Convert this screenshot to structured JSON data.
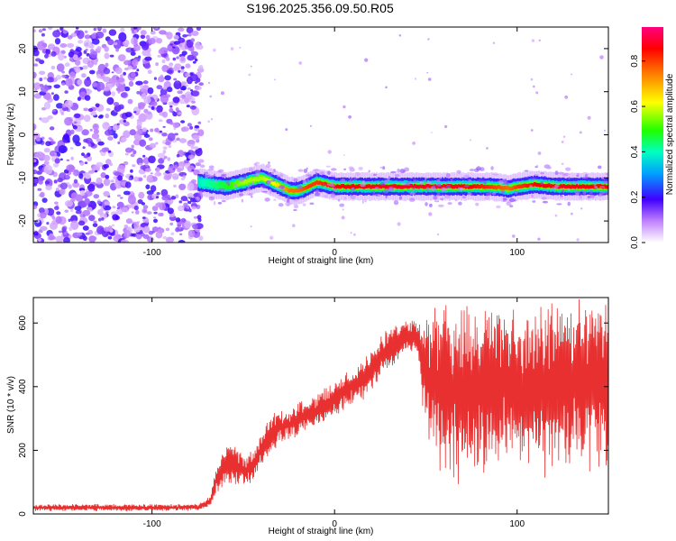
{
  "chart_data": [
    {
      "type": "heatmap",
      "title": "S196.2025.356.09.50.R05",
      "xlabel": "Height of straight line (km)",
      "ylabel": "Frequency (Hz)",
      "xlim": [
        -165,
        150
      ],
      "ylim": [
        -25,
        25
      ],
      "xticks": [
        -100,
        0,
        100
      ],
      "xtick_labels": [
        "-100",
        "0",
        "100"
      ],
      "yticks": [
        20,
        10,
        0,
        -10,
        -20
      ],
      "ytick_labels": [
        "20",
        "10",
        "0",
        "-10",
        "-20"
      ],
      "colorbar": {
        "label": "Normalized spectral amplitude",
        "range": [
          0.0,
          0.95
        ],
        "ticks": [
          0.0,
          0.2,
          0.4,
          0.6,
          0.8
        ],
        "tick_labels": [
          "0.0",
          "0.2",
          "0.4",
          "0.6",
          "0.8"
        ]
      },
      "noise_region_x": [
        -165,
        -75
      ],
      "signal_band": {
        "x": [
          -75,
          -60,
          -50,
          -40,
          -30,
          -25,
          -20,
          -15,
          -10,
          0,
          10,
          20,
          40,
          60,
          75,
          85,
          95,
          100,
          110,
          120,
          130,
          140,
          150
        ],
        "frequency": [
          -11,
          -12,
          -11,
          -10,
          -12,
          -13,
          -13,
          -12,
          -11,
          -12,
          -12,
          -12,
          -12,
          -12,
          -12,
          -12,
          -12.5,
          -12,
          -11.5,
          -12,
          -12,
          -12,
          -12
        ],
        "peak_amplitude": [
          0.4,
          0.5,
          0.6,
          0.6,
          0.7,
          0.8,
          0.8,
          0.85,
          0.85,
          0.9,
          0.9,
          0.92,
          0.93,
          0.93,
          0.9,
          0.85,
          0.8,
          0.85,
          0.9,
          0.92,
          0.92,
          0.9,
          0.9
        ]
      }
    },
    {
      "type": "line",
      "xlabel": "Height of straight line (km)",
      "ylabel": "SNR (10 * v/v)",
      "xlim": [
        -165,
        150
      ],
      "ylim": [
        0,
        680
      ],
      "xticks": [
        -100,
        0,
        100
      ],
      "xtick_labels": [
        "-100",
        "0",
        "100"
      ],
      "yticks": [
        0,
        200,
        400,
        600
      ],
      "ytick_labels": [
        "0",
        "200",
        "400",
        "600"
      ],
      "series": [
        {
          "name": "SNR",
          "color": "#e83030",
          "x": [
            -165,
            -150,
            -130,
            -110,
            -90,
            -75,
            -68,
            -65,
            -60,
            -55,
            -50,
            -45,
            -40,
            -35,
            -30,
            -25,
            -20,
            -15,
            -10,
            -5,
            0,
            5,
            10,
            15,
            20,
            25,
            30,
            35,
            40,
            45,
            50,
            55,
            60,
            70,
            80,
            90,
            100,
            110,
            120,
            130,
            140,
            150
          ],
          "mean": [
            20,
            20,
            20,
            20,
            20,
            22,
            40,
            100,
            150,
            160,
            130,
            150,
            200,
            250,
            275,
            280,
            300,
            310,
            320,
            340,
            360,
            380,
            400,
            420,
            450,
            500,
            520,
            540,
            555,
            555,
            450,
            400,
            380,
            380,
            390,
            400,
            400,
            390,
            400,
            400,
            410,
            410
          ],
          "amplitude": [
            10,
            10,
            10,
            10,
            10,
            10,
            15,
            40,
            60,
            60,
            50,
            50,
            50,
            50,
            50,
            50,
            50,
            50,
            50,
            50,
            50,
            50,
            60,
            60,
            60,
            60,
            60,
            60,
            50,
            50,
            200,
            230,
            240,
            240,
            240,
            240,
            240,
            240,
            240,
            240,
            240,
            240
          ]
        }
      ]
    }
  ]
}
